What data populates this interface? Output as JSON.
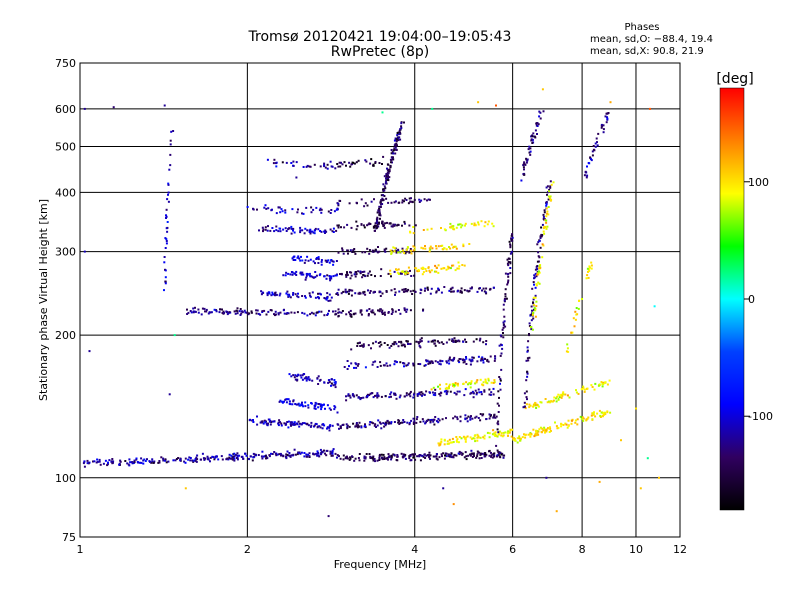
{
  "chart_data": {
    "type": "scatter",
    "title": "Tromsø 20120421 19:04:00–19:05:43",
    "subtitle": "RwPretec (8p)",
    "xlabel": "Frequency [MHz]",
    "ylabel": "Stationary phase Virtual Height [km]",
    "x_scale": "log",
    "y_scale": "log",
    "xlim": [
      1,
      12
    ],
    "ylim": [
      75,
      750
    ],
    "x_ticks": [
      1,
      2,
      4,
      6,
      8,
      10,
      12
    ],
    "y_ticks": [
      75,
      100,
      200,
      300,
      400,
      500,
      600,
      750
    ],
    "x_gridlines": [
      2,
      4,
      6,
      8,
      10
    ],
    "y_gridlines": [
      100,
      200,
      300,
      400,
      500,
      600
    ],
    "grid": true,
    "info": {
      "heading": "Phases",
      "line1": "mean, sd,O:  −88.4, 19.4",
      "line2": "mean, sd,X:  90.8, 21.9"
    },
    "colorbar": {
      "label": "[deg]",
      "range": [
        -180,
        180
      ],
      "ticks": [
        100,
        0,
        -100
      ],
      "colors": [
        "#ff0000",
        "#ff8000",
        "#ffff00",
        "#00ff00",
        "#00ffff",
        "#0040ff",
        "#0000ff",
        "#300060",
        "#000000"
      ]
    },
    "traces": [
      {
        "x0": 1.02,
        "x1": 2.9,
        "h0": 107,
        "h1": 113,
        "phase": -120,
        "sd": 25,
        "n": 260
      },
      {
        "x0": 2.9,
        "x1": 5.8,
        "h0": 110,
        "h1": 112,
        "phase": -140,
        "sd": 20,
        "n": 220
      },
      {
        "x0": 4.4,
        "x1": 6.0,
        "h0": 118,
        "h1": 125,
        "phase": 95,
        "sd": 18,
        "n": 80
      },
      {
        "x0": 6.0,
        "x1": 9.0,
        "h0": 120,
        "h1": 138,
        "phase": 100,
        "sd": 18,
        "n": 120
      },
      {
        "x0": 2.0,
        "x1": 2.9,
        "h0": 132,
        "h1": 128,
        "phase": -115,
        "sd": 20,
        "n": 90
      },
      {
        "x0": 2.9,
        "x1": 5.6,
        "h0": 128,
        "h1": 135,
        "phase": -130,
        "sd": 20,
        "n": 140
      },
      {
        "x0": 2.3,
        "x1": 2.9,
        "h0": 145,
        "h1": 140,
        "phase": -95,
        "sd": 20,
        "n": 60
      },
      {
        "x0": 3.0,
        "x1": 5.6,
        "h0": 148,
        "h1": 152,
        "phase": -125,
        "sd": 22,
        "n": 120
      },
      {
        "x0": 4.3,
        "x1": 5.6,
        "h0": 155,
        "h1": 160,
        "phase": 95,
        "sd": 20,
        "n": 50
      },
      {
        "x0": 6.3,
        "x1": 9.0,
        "h0": 140,
        "h1": 160,
        "phase": 95,
        "sd": 18,
        "n": 80
      },
      {
        "x0": 2.4,
        "x1": 2.9,
        "h0": 165,
        "h1": 158,
        "phase": -110,
        "sd": 20,
        "n": 50
      },
      {
        "x0": 3.0,
        "x1": 5.6,
        "h0": 172,
        "h1": 178,
        "phase": -120,
        "sd": 22,
        "n": 110
      },
      {
        "x0": 3.0,
        "x1": 5.4,
        "h0": 190,
        "h1": 195,
        "phase": -140,
        "sd": 20,
        "n": 90
      },
      {
        "x0": 1.55,
        "x1": 2.9,
        "h0": 225,
        "h1": 222,
        "phase": -125,
        "sd": 20,
        "n": 110
      },
      {
        "x0": 2.9,
        "x1": 4.2,
        "h0": 222,
        "h1": 226,
        "phase": -140,
        "sd": 18,
        "n": 60
      },
      {
        "x0": 2.1,
        "x1": 2.9,
        "h0": 245,
        "h1": 240,
        "phase": -110,
        "sd": 20,
        "n": 60
      },
      {
        "x0": 2.9,
        "x1": 5.6,
        "h0": 245,
        "h1": 250,
        "phase": -135,
        "sd": 22,
        "n": 110
      },
      {
        "x0": 2.3,
        "x1": 2.9,
        "h0": 270,
        "h1": 265,
        "phase": -105,
        "sd": 20,
        "n": 50
      },
      {
        "x0": 2.9,
        "x1": 4.0,
        "h0": 268,
        "h1": 270,
        "phase": -140,
        "sd": 18,
        "n": 50
      },
      {
        "x0": 3.6,
        "x1": 5.0,
        "h0": 270,
        "h1": 280,
        "phase": 100,
        "sd": 18,
        "n": 60
      },
      {
        "x0": 2.4,
        "x1": 2.9,
        "h0": 290,
        "h1": 285,
        "phase": -100,
        "sd": 20,
        "n": 40
      },
      {
        "x0": 2.9,
        "x1": 4.0,
        "h0": 300,
        "h1": 302,
        "phase": -140,
        "sd": 18,
        "n": 50
      },
      {
        "x0": 3.6,
        "x1": 5.0,
        "h0": 300,
        "h1": 310,
        "phase": 100,
        "sd": 18,
        "n": 50
      },
      {
        "x0": 2.1,
        "x1": 2.9,
        "h0": 335,
        "h1": 330,
        "phase": -110,
        "sd": 22,
        "n": 60
      },
      {
        "x0": 2.9,
        "x1": 4.0,
        "h0": 340,
        "h1": 342,
        "phase": -145,
        "sd": 18,
        "n": 50
      },
      {
        "x0": 3.8,
        "x1": 5.6,
        "h0": 330,
        "h1": 345,
        "phase": 95,
        "sd": 20,
        "n": 40
      },
      {
        "x0": 2.0,
        "x1": 2.9,
        "h0": 370,
        "h1": 365,
        "phase": -115,
        "sd": 22,
        "n": 40
      },
      {
        "x0": 2.9,
        "x1": 4.4,
        "h0": 380,
        "h1": 385,
        "phase": -140,
        "sd": 20,
        "n": 45
      },
      {
        "x0": 2.1,
        "x1": 2.9,
        "h0": 460,
        "h1": 455,
        "phase": -115,
        "sd": 22,
        "n": 30
      },
      {
        "x0": 2.9,
        "x1": 3.6,
        "h0": 460,
        "h1": 465,
        "phase": -150,
        "sd": 20,
        "n": 30
      },
      {
        "x0": 3.4,
        "x1": 3.8,
        "h0": 330,
        "h1": 560,
        "phase": -140,
        "sd": 20,
        "n": 140
      },
      {
        "x0": 6.2,
        "x1": 6.8,
        "h0": 420,
        "h1": 600,
        "phase": -130,
        "sd": 25,
        "n": 50
      },
      {
        "x0": 6.3,
        "x1": 7.0,
        "h0": 140,
        "h1": 420,
        "phase": -130,
        "sd": 25,
        "n": 100
      },
      {
        "x0": 6.5,
        "x1": 7.1,
        "h0": 200,
        "h1": 420,
        "phase": 95,
        "sd": 20,
        "n": 60
      },
      {
        "x0": 8.1,
        "x1": 9.0,
        "h0": 430,
        "h1": 600,
        "phase": -120,
        "sd": 25,
        "n": 40
      },
      {
        "x0": 5.6,
        "x1": 6.0,
        "h0": 110,
        "h1": 330,
        "phase": -140,
        "sd": 22,
        "n": 80
      },
      {
        "x0": 1.42,
        "x1": 1.46,
        "h0": 250,
        "h1": 540,
        "phase": -110,
        "sd": 25,
        "n": 35
      },
      {
        "x0": 7.5,
        "x1": 8.3,
        "h0": 180,
        "h1": 280,
        "phase": 95,
        "sd": 20,
        "n": 30
      }
    ],
    "sparse_points": [
      [
        1.02,
        600,
        -120
      ],
      [
        1.15,
        605,
        -130
      ],
      [
        1.42,
        610,
        -120
      ],
      [
        1.0,
        380,
        -120
      ],
      [
        1.02,
        300,
        -110
      ],
      [
        1.0,
        250,
        0
      ],
      [
        1.04,
        185,
        -120
      ],
      [
        1.45,
        150,
        -120
      ],
      [
        1.55,
        95,
        110
      ],
      [
        1.45,
        75,
        -120
      ],
      [
        2.8,
        83,
        -130
      ],
      [
        1.48,
        200,
        20
      ],
      [
        1.0,
        160,
        -110
      ],
      [
        2.45,
        430,
        -120
      ],
      [
        3.5,
        590,
        20
      ],
      [
        5.2,
        620,
        110
      ],
      [
        5.6,
        610,
        150
      ],
      [
        4.3,
        600,
        20
      ],
      [
        6.8,
        660,
        110
      ],
      [
        9.0,
        620,
        120
      ],
      [
        10.6,
        600,
        150
      ],
      [
        10.8,
        230,
        0
      ],
      [
        10.0,
        140,
        100
      ],
      [
        11.0,
        100,
        110
      ],
      [
        10.5,
        110,
        20
      ],
      [
        4.7,
        88,
        130
      ],
      [
        7.2,
        85,
        120
      ],
      [
        4.5,
        95,
        -120
      ],
      [
        9.4,
        120,
        110
      ],
      [
        10.2,
        95,
        110
      ],
      [
        6.9,
        100,
        -120
      ],
      [
        8.6,
        98,
        120
      ]
    ]
  }
}
